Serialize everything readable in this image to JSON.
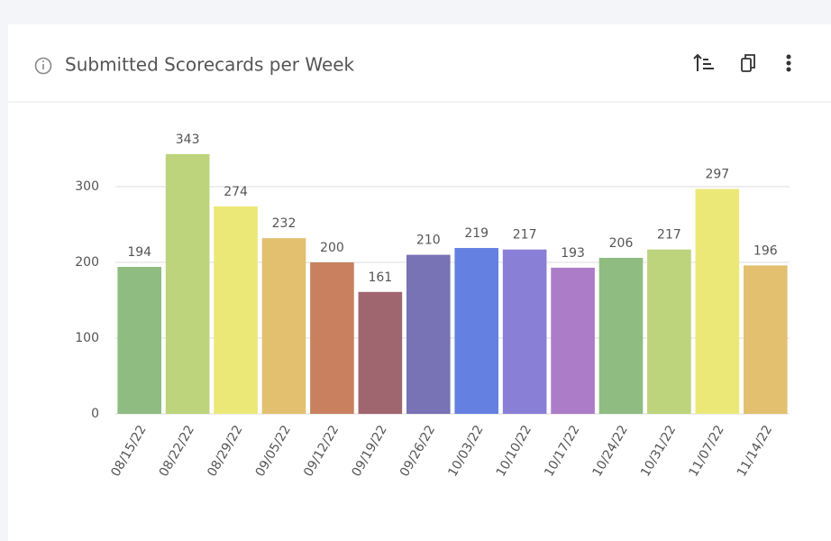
{
  "chart_data": {
    "type": "bar",
    "title": "Submitted Scorecards per Week",
    "categories": [
      "08/15/22",
      "08/22/22",
      "08/29/22",
      "09/05/22",
      "09/12/22",
      "09/19/22",
      "09/26/22",
      "10/03/22",
      "10/10/22",
      "10/17/22",
      "10/24/22",
      "10/31/22",
      "11/07/22",
      "11/14/22"
    ],
    "values": [
      194,
      343,
      274,
      232,
      200,
      161,
      210,
      219,
      217,
      193,
      206,
      217,
      297,
      196
    ],
    "colors": [
      "#8fbc80",
      "#bdd47c",
      "#ebe878",
      "#e2c070",
      "#c8805e",
      "#a06670",
      "#7873b5",
      "#6480e0",
      "#8a7fd6",
      "#ad7cc8",
      "#8fbc80",
      "#bdd47c",
      "#ebe878",
      "#e2c070"
    ],
    "ylim": [
      0,
      350
    ],
    "yticks": [
      0,
      100,
      200,
      300
    ],
    "grid": true
  }
}
